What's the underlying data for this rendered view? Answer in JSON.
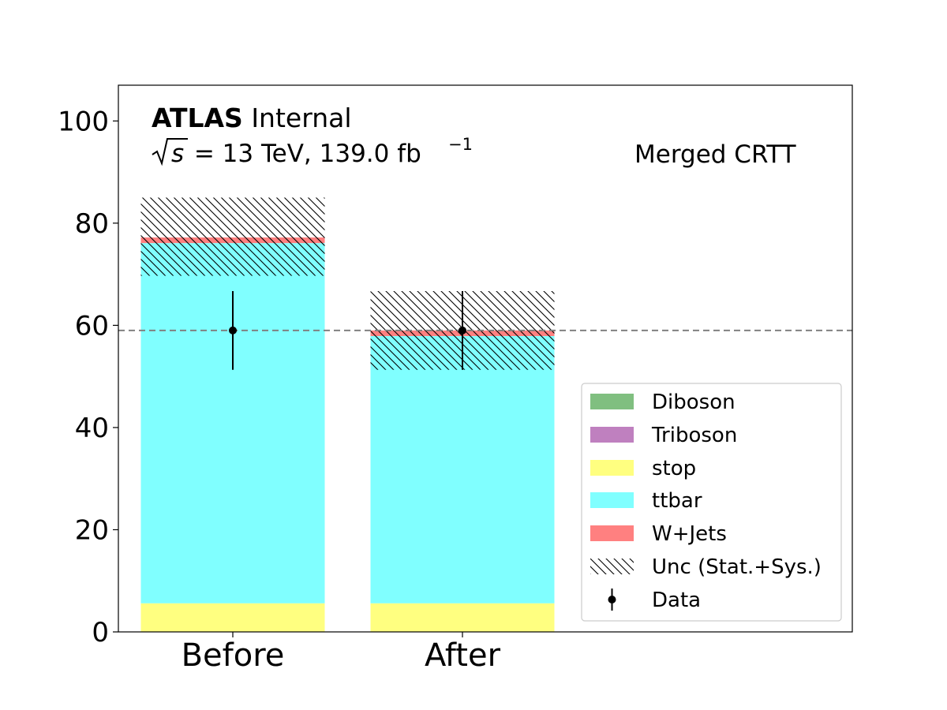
{
  "chart_data": {
    "type": "bar",
    "stacked": true,
    "categories": [
      "Before",
      "After"
    ],
    "ylim": [
      0,
      107
    ],
    "y_ticks": [
      "0",
      "20",
      "40",
      "60",
      "80",
      "100"
    ],
    "series": [
      {
        "name": "Diboson",
        "color": "#80bf80",
        "values": [
          0.0,
          0.0
        ]
      },
      {
        "name": "Triboson",
        "color": "#bf80bf",
        "values": [
          0.0,
          0.0
        ]
      },
      {
        "name": "stop",
        "color": "#ffff80",
        "values": [
          5.6,
          5.6
        ]
      },
      {
        "name": "ttbar",
        "color": "#80ffff",
        "values": [
          70.5,
          52.3
        ]
      },
      {
        "name": "W+Jets",
        "color": "#ff8080",
        "values": [
          1.1,
          1.1
        ]
      }
    ],
    "uncertainty": {
      "name": "Unc (Stat.+Sys.)",
      "low": [
        69.7,
        51.3
      ],
      "high": [
        85.0,
        66.7
      ]
    },
    "data_points": {
      "name": "Data",
      "values": [
        59.0,
        59.0
      ],
      "err_low": [
        51.3,
        51.3
      ],
      "err_high": [
        66.7,
        66.7
      ]
    },
    "reference_line": 59.0,
    "legend_position": "lower-right",
    "annotations": {
      "experiment": "ATLAS",
      "status": "Internal",
      "sqrt_s": "s",
      "energy_lumi": " = 13 TeV, 139.0 fb",
      "lumi_exponent": "−1",
      "region": "Merged CRTT"
    }
  }
}
